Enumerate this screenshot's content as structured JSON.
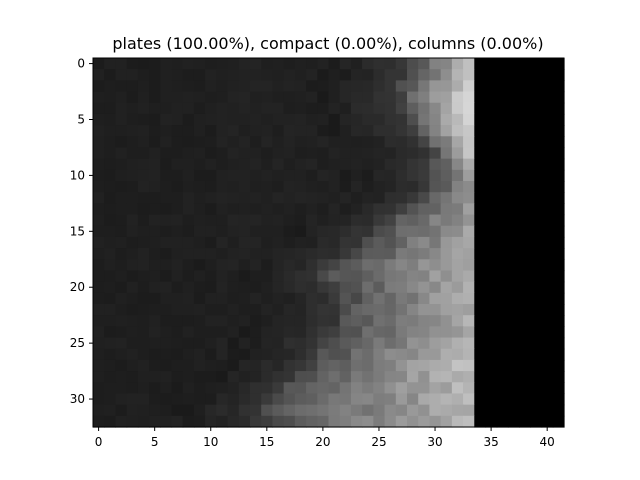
{
  "chart_data": {
    "type": "heatmap",
    "title": "plates (100.00%), compact (0.00%), columns (0.00%)",
    "xlabel": "",
    "ylabel": "",
    "colormap": "gray",
    "grid": false,
    "legend": "none",
    "shape": {
      "rows": 33,
      "cols": 42
    },
    "xlim": [
      -0.5,
      41.5
    ],
    "ylim": [
      32.5,
      -0.5
    ],
    "x_ticks": [
      0,
      5,
      10,
      15,
      20,
      25,
      30,
      35,
      40
    ],
    "y_ticks": [
      0,
      5,
      10,
      15,
      20,
      25,
      30
    ],
    "intensity_profile": {
      "description_free_params": true,
      "background_value": 0.12,
      "right_black_band_start_col": 34,
      "right_black_band_value": 0.0,
      "bright_edge_cols": [
        29,
        33
      ],
      "bright_edge_peak_value": 0.85
    },
    "boundary_col_by_row": [
      28,
      28,
      27,
      27,
      27,
      28,
      28,
      29,
      30,
      30,
      30,
      30,
      29,
      27,
      26,
      25,
      24,
      23,
      21,
      20,
      21,
      22,
      22,
      22,
      21,
      20,
      20,
      19,
      18,
      17,
      16,
      15,
      15
    ],
    "edge_peak_by_row": [
      0.7,
      0.8,
      0.82,
      0.84,
      0.86,
      0.86,
      0.82,
      0.78,
      0.72,
      0.65,
      0.6,
      0.58,
      0.56,
      0.58,
      0.6,
      0.62,
      0.64,
      0.66,
      0.66,
      0.66,
      0.66,
      0.68,
      0.68,
      0.66,
      0.66,
      0.68,
      0.72,
      0.76,
      0.74,
      0.72,
      0.7,
      0.7,
      0.7
    ]
  }
}
